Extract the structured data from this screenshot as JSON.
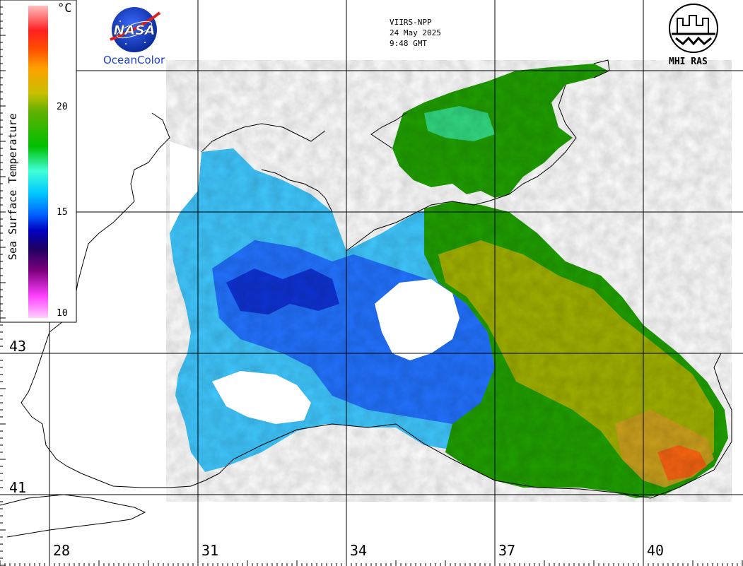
{
  "header": {
    "sensor": "VIIRS-NPP",
    "date": "24 May 2025",
    "time": "9:48 GMT"
  },
  "logos": {
    "nasa_text": "NASA",
    "oceancolor_label": "OceanColor",
    "mhi_label": "MHI RAS"
  },
  "colorbar": {
    "title": "Sea Surface Temperature",
    "unit": "°C",
    "ticks": [
      "20",
      "15",
      "10"
    ],
    "min": 10,
    "max": 25,
    "gradient_colors": [
      "#ffd0ff",
      "#ff40ff",
      "#80007f",
      "#200060",
      "#0000c0",
      "#0060ff",
      "#00c8ff",
      "#40ffd8",
      "#00c000",
      "#60b000",
      "#c8c000",
      "#ffa000",
      "#ff5000",
      "#ff2020",
      "#ffc0c0"
    ]
  },
  "map": {
    "lon_labels": [
      "28",
      "31",
      "34",
      "37",
      "40"
    ],
    "lat_labels": [
      "43",
      "41"
    ],
    "sst_colors": [
      "#40c8ff",
      "#1a5cff",
      "#0000b0",
      "#20a000",
      "#b8b400",
      "#d0a020",
      "#ff5a10"
    ]
  }
}
